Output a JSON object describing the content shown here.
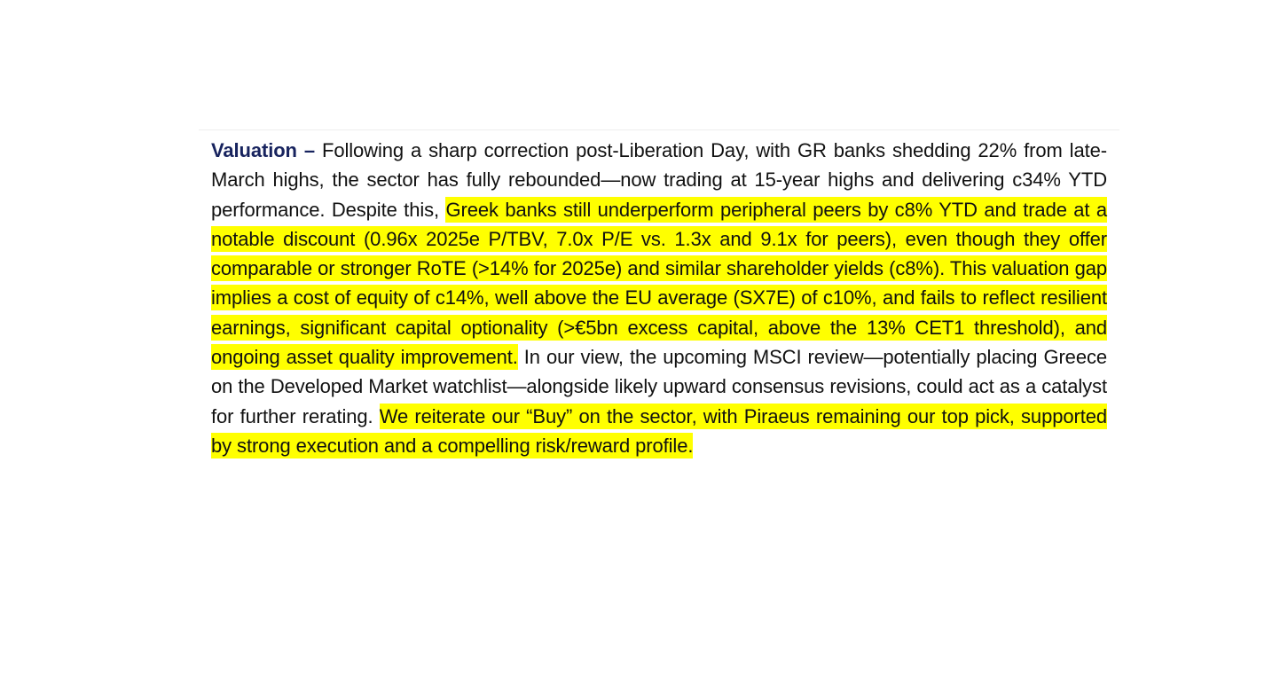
{
  "paragraph": {
    "lead": "Valuation",
    "lead_dash": " –",
    "text_1": " Following a sharp correction post-Liberation Day, with GR banks shedding 22% from late-March highs, the sector has fully rebounded—now trading at 15-year highs and delivering c34% YTD performance. Despite this, ",
    "highlight_1": "Greek banks still underperform peripheral peers by c8% YTD and trade at a notable discount (0.96x 2025e P/TBV, 7.0x P/E vs. 1.3x and 9.1x for peers), even though they offer comparable or stronger RoTE (>14% for 2025e) and similar shareholder yields (c8%). This valuation gap implies a cost of equity of c14%, well above the EU average (SX7E) of c10%, and fails to reflect resilient earnings, significant capital optionality (>€5bn excess capital, above the 13% CET1 threshold), and ongoing asset quality improvement.",
    "text_2": " In our view, the upcoming MSCI review—potentially placing Greece on the Developed Market watchlist—alongside likely upward consensus revisions, could act as a catalyst for further rerating. ",
    "highlight_2": "We reiterate our “Buy” on the sector, with Piraeus remaining our top pick, supported by strong execution and a compelling risk/reward profile."
  },
  "colors": {
    "highlight": "#ffff00",
    "lead_text": "#17235e",
    "body_text": "#111111"
  }
}
